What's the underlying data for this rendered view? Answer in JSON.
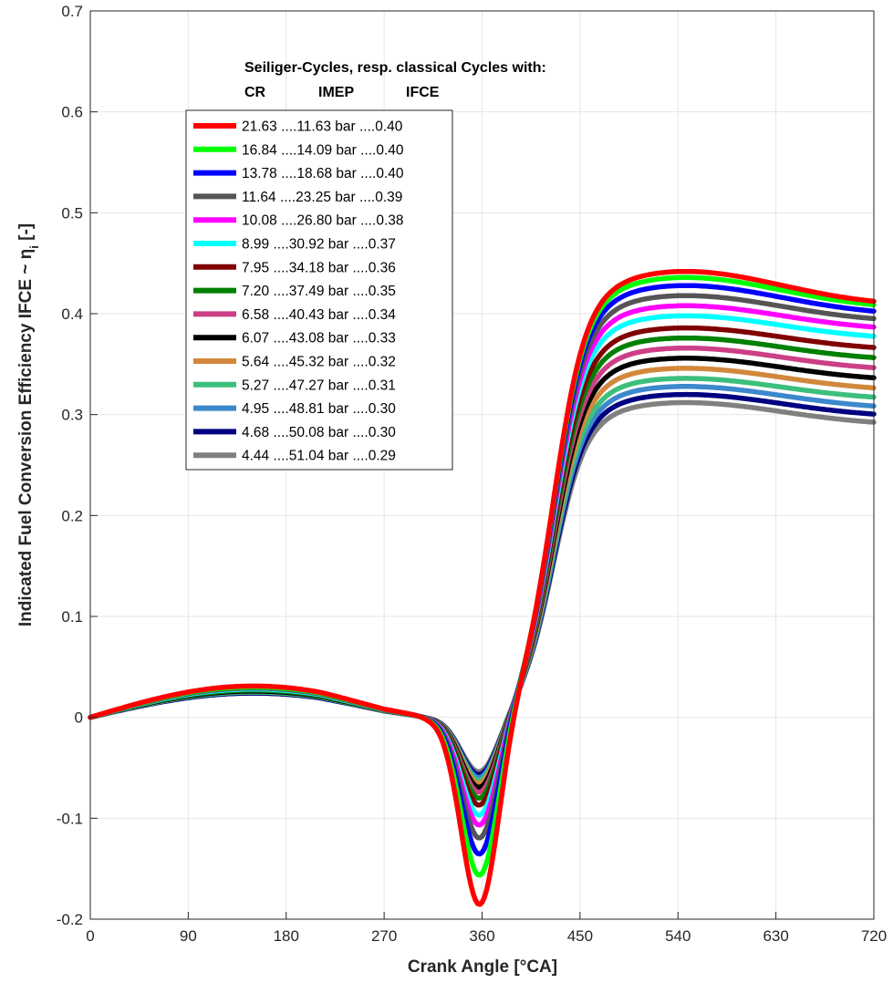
{
  "chart_data": {
    "type": "line",
    "xlabel": "Crank Angle [°CA]",
    "ylabel": "Indicated Fuel Conversion Efficiency IFCE  ~  η",
    "ylabel_sub": "i",
    "ylabel_tail": "  [-]",
    "xlim": [
      0,
      720
    ],
    "ylim": [
      -0.2,
      0.7
    ],
    "xticks": [
      0,
      90,
      180,
      270,
      360,
      450,
      540,
      630,
      720
    ],
    "yticks": [
      -0.2,
      -0.1,
      0,
      0.1,
      0.2,
      0.3,
      0.4,
      0.5,
      0.6,
      0.7
    ],
    "ytick_labels": [
      "-0.2",
      "-0.1",
      "0",
      "0.1",
      "0.2",
      "0.3",
      "0.4",
      "0.5",
      "0.6",
      "0.7"
    ],
    "grid": true,
    "legend": {
      "placement": "top-left",
      "title_line1": "Seiliger-Cycles, resp. classical Cycles with:",
      "col_cr": "CR",
      "col_imep": "IMEP",
      "col_ifce": "IFCE"
    },
    "series": [
      {
        "label": "21.63 ....11.63 bar ....0.40",
        "color": "#ff0000",
        "cr": 21.63,
        "imep": 11.63,
        "ifce": 0.4,
        "peak": 0.442,
        "min": -0.19,
        "final": 0.407,
        "early": 0.031
      },
      {
        "label": "16.84 ....14.09 bar ....0.40",
        "color": "#00ff00",
        "cr": 16.84,
        "imep": 14.09,
        "ifce": 0.4,
        "peak": 0.436,
        "min": -0.161,
        "final": 0.404,
        "early": 0.03
      },
      {
        "label": "13.78 ....18.68 bar ....0.40",
        "color": "#0000ff",
        "cr": 13.78,
        "imep": 18.68,
        "ifce": 0.4,
        "peak": 0.428,
        "min": -0.14,
        "final": 0.398,
        "early": 0.03
      },
      {
        "label": "11.64 ....23.25 bar ....0.39",
        "color": "#555555",
        "cr": 11.64,
        "imep": 23.25,
        "ifce": 0.39,
        "peak": 0.418,
        "min": -0.124,
        "final": 0.391,
        "early": 0.029
      },
      {
        "label": "10.08 ....26.80 bar ....0.38",
        "color": "#ff00ff",
        "cr": 10.08,
        "imep": 26.8,
        "ifce": 0.38,
        "peak": 0.408,
        "min": -0.111,
        "final": 0.383,
        "early": 0.029
      },
      {
        "label": "8.99 ....30.92 bar ....0.37",
        "color": "#00ffff",
        "cr": 8.99,
        "imep": 30.92,
        "ifce": 0.37,
        "peak": 0.398,
        "min": -0.101,
        "final": 0.374,
        "early": 0.028
      },
      {
        "label": "7.95 ....34.18 bar ....0.36",
        "color": "#800000",
        "cr": 7.95,
        "imep": 34.18,
        "ifce": 0.36,
        "peak": 0.386,
        "min": -0.091,
        "final": 0.363,
        "early": 0.028
      },
      {
        "label": "7.20 ....37.49 bar ....0.35",
        "color": "#008000",
        "cr": 7.2,
        "imep": 37.49,
        "ifce": 0.35,
        "peak": 0.376,
        "min": -0.084,
        "final": 0.353,
        "early": 0.027
      },
      {
        "label": "6.58 ....40.43 bar ....0.34",
        "color": "#cc3f86",
        "cr": 6.58,
        "imep": 40.43,
        "ifce": 0.34,
        "peak": 0.366,
        "min": -0.078,
        "final": 0.343,
        "early": 0.027
      },
      {
        "label": "6.07 ....43.08 bar ....0.33",
        "color": "#000000",
        "cr": 6.07,
        "imep": 43.08,
        "ifce": 0.33,
        "peak": 0.356,
        "min": -0.073,
        "final": 0.333,
        "early": 0.026
      },
      {
        "label": "5.64 ....45.32 bar ....0.32",
        "color": "#d2883c",
        "cr": 5.64,
        "imep": 45.32,
        "ifce": 0.32,
        "peak": 0.346,
        "min": -0.069,
        "final": 0.323,
        "early": 0.026
      },
      {
        "label": "5.27 ....47.27 bar ....0.31",
        "color": "#3cbf7c",
        "cr": 5.27,
        "imep": 47.27,
        "ifce": 0.31,
        "peak": 0.336,
        "min": -0.066,
        "final": 0.314,
        "early": 0.025
      },
      {
        "label": "4.95 ....48.81 bar ....0.30",
        "color": "#3c88cc",
        "cr": 4.95,
        "imep": 48.81,
        "ifce": 0.3,
        "peak": 0.328,
        "min": -0.063,
        "final": 0.305,
        "early": 0.025
      },
      {
        "label": "4.68 ....50.08 bar ....0.30",
        "color": "#000080",
        "cr": 4.68,
        "imep": 50.08,
        "ifce": 0.3,
        "peak": 0.32,
        "min": -0.06,
        "final": 0.297,
        "early": 0.024
      },
      {
        "label": "4.44 ....51.04 bar ....0.29",
        "color": "#808080",
        "cr": 4.44,
        "imep": 51.04,
        "ifce": 0.29,
        "peak": 0.312,
        "min": -0.057,
        "final": 0.289,
        "early": 0.024
      }
    ]
  }
}
